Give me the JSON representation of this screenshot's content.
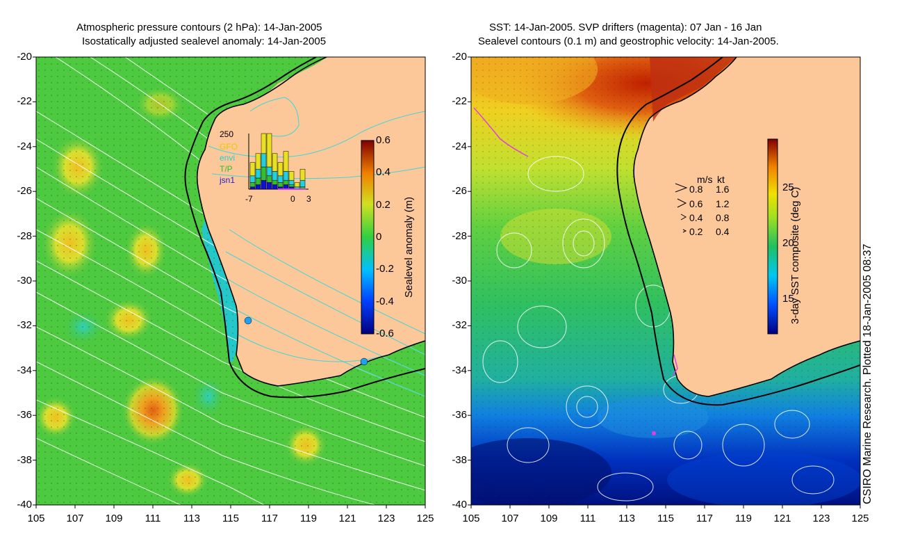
{
  "left_panel": {
    "title_line1": "Atmospheric pressure contours (2 hPa): 14-Jan-2005",
    "title_line2": "Isostatically adjusted sealevel anomaly: 14-Jan-2005",
    "colorbar_label": "Sealevel anomaly (m)",
    "colorbar_ticks": [
      "0.6",
      "0.4",
      "0.2",
      "0",
      "-0.2",
      "-0.4",
      "-0.6"
    ],
    "inset": {
      "ymax_label": "250",
      "satellites": [
        "GFO",
        "envi",
        "T/P",
        "jsn1"
      ],
      "x_ticks": [
        "-7",
        "0",
        "3"
      ],
      "bars_stacked_counts": [
        [
          60,
          30,
          20,
          10
        ],
        [
          70,
          40,
          30,
          20
        ],
        [
          90,
          60,
          60,
          40
        ],
        [
          150,
          40,
          30,
          30
        ],
        [
          80,
          40,
          20,
          20
        ],
        [
          60,
          30,
          20,
          10
        ],
        [
          90,
          40,
          20,
          20
        ],
        [
          40,
          20,
          10,
          10
        ],
        [
          20,
          10,
          0,
          0
        ],
        [
          50,
          30,
          10,
          0
        ]
      ]
    }
  },
  "right_panel": {
    "title_line1": "SST: 14-Jan-2005. SVP drifters (magenta): 07 Jan - 16 Jan",
    "title_line2": "Sealevel contours (0.1 m) and geostrophic velocity: 14-Jan-2005.",
    "colorbar_label": "3-day SST composite (deg C)",
    "colorbar_ticks": [
      "25",
      "20",
      "15"
    ],
    "velocity_legend": {
      "header_ms": "m/s",
      "header_kt": "kt",
      "rows": [
        {
          "ms": "0.8",
          "kt": "1.6"
        },
        {
          "ms": "0.6",
          "kt": "1.2"
        },
        {
          "ms": "0.4",
          "kt": "0.8"
        },
        {
          "ms": "0.2",
          "kt": "0.4"
        }
      ]
    }
  },
  "axes": {
    "lat_ticks": [
      "-20",
      "-22",
      "-24",
      "-26",
      "-28",
      "-30",
      "-32",
      "-34",
      "-36",
      "-38",
      "-40"
    ],
    "lon_ticks": [
      "105",
      "107",
      "109",
      "111",
      "113",
      "115",
      "117",
      "119",
      "121",
      "123",
      "125"
    ]
  },
  "credit": "CSIRO Marine Research. Plotted 18-Jan-2005 08:37",
  "colors": {
    "land": "#fcc89a",
    "ocean_green": "#3cc83c",
    "contour": "#ffffff",
    "pressure_contour_land": "#3fd6d6",
    "drifter": "#e040e0"
  }
}
